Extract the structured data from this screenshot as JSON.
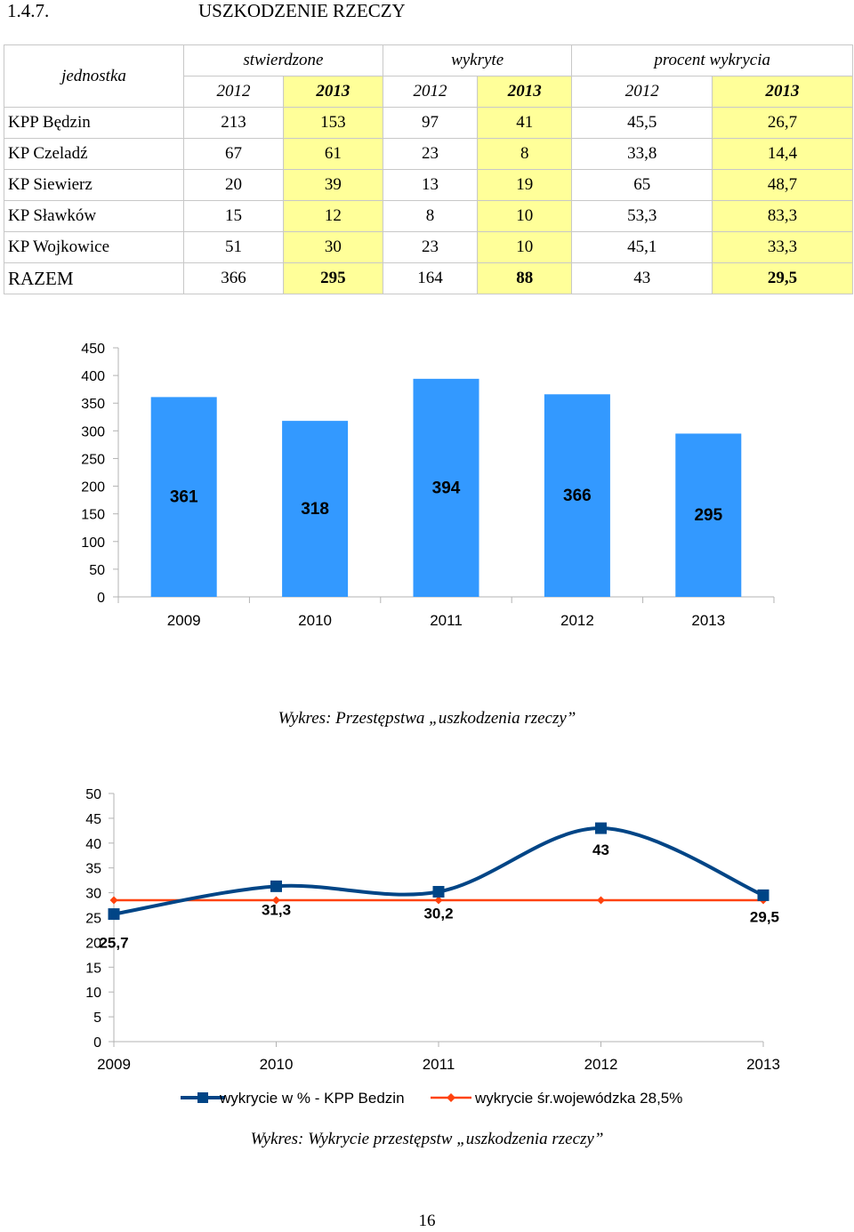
{
  "heading": {
    "number": "1.4.7.",
    "title": "USZKODZENIE RZECZY"
  },
  "table": {
    "group_headers": [
      "jednostka",
      "stwierdzone",
      "wykryte",
      "procent wykrycia"
    ],
    "years": [
      "2012",
      "2013",
      "2012",
      "2013",
      "2012",
      "2013"
    ],
    "rows": [
      {
        "name": "KPP Będzin",
        "values": [
          "213",
          "153",
          "97",
          "41",
          "45,5",
          "26,7"
        ]
      },
      {
        "name": "KP Czeladź",
        "values": [
          "67",
          "61",
          "23",
          "8",
          "33,8",
          "14,4"
        ]
      },
      {
        "name": "KP Siewierz",
        "values": [
          "20",
          "39",
          "13",
          "19",
          "65",
          "48,7"
        ]
      },
      {
        "name": "KP Sławków",
        "values": [
          "15",
          "12",
          "8",
          "10",
          "53,3",
          "83,3"
        ]
      },
      {
        "name": "KP Wojkowice",
        "values": [
          "51",
          "30",
          "23",
          "10",
          "45,1",
          "33,3"
        ]
      }
    ],
    "total": {
      "name": "RAZEM",
      "values": [
        "366",
        "295",
        "164",
        "88",
        "43",
        "29,5"
      ]
    }
  },
  "chart_data": [
    {
      "type": "bar",
      "title": "",
      "categories": [
        "2009",
        "2010",
        "2011",
        "2012",
        "2013"
      ],
      "values": [
        361,
        318,
        394,
        366,
        295
      ],
      "data_labels": [
        "361",
        "318",
        "394",
        "366",
        "295"
      ],
      "ylim": [
        0,
        450
      ],
      "yticks": [
        "0",
        "50",
        "100",
        "150",
        "200",
        "250",
        "300",
        "350",
        "400",
        "450"
      ],
      "grid": false,
      "bar_color": "#3399ff"
    },
    {
      "type": "line",
      "title": "",
      "categories": [
        "2009",
        "2010",
        "2011",
        "2012",
        "2013"
      ],
      "series": [
        {
          "name": "wykrycie w % - KPP Bedzin",
          "values": [
            25.7,
            31.3,
            30.2,
            43,
            29.5
          ],
          "color": "#004586",
          "marker": "square"
        },
        {
          "name": "wykrycie śr.wojewódzka 28,5%",
          "values": [
            28.5,
            28.5,
            28.5,
            28.5,
            28.5
          ],
          "color": "#ff420e",
          "marker": "diamond"
        }
      ],
      "data_labels": [
        "25,7",
        "31,3",
        "30,2",
        "43",
        "29,5"
      ],
      "ylim": [
        0,
        50
      ],
      "yticks": [
        "0",
        "5",
        "10",
        "15",
        "20",
        "25",
        "30",
        "35",
        "40",
        "45",
        "50"
      ],
      "grid": false,
      "legend_position": "bottom"
    }
  ],
  "captions": {
    "bar": "Wykres: Przestępstwa „uszkodzenia rzeczy”",
    "line": "Wykres: Wykrycie przestępstw „uszkodzenia rzeczy”"
  },
  "page_number": "16"
}
